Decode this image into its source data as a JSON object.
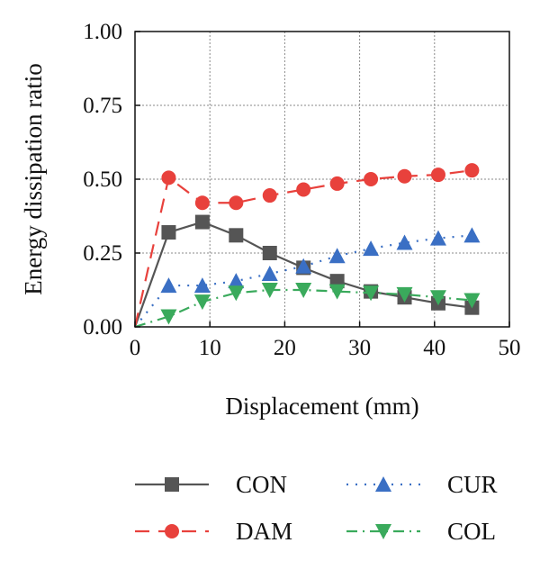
{
  "chart_data": {
    "type": "line",
    "xlabel": "Displacement (mm)",
    "ylabel": "Energy dissipation ratio",
    "xlim": [
      0,
      50
    ],
    "ylim": [
      0,
      1.0
    ],
    "xticks": [
      0,
      10,
      20,
      30,
      40,
      50
    ],
    "yticks": [
      0.0,
      0.25,
      0.5,
      0.75,
      1.0
    ],
    "xtick_labels": [
      "0",
      "10",
      "20",
      "30",
      "40",
      "50"
    ],
    "ytick_labels": [
      "0.00",
      "0.25",
      "0.50",
      "0.75",
      "1.00"
    ],
    "grid": true,
    "legend_position": "bottom",
    "series": [
      {
        "name": "CON",
        "color": "#555555",
        "marker": "square",
        "line_style": "solid",
        "x": [
          0,
          4.5,
          9,
          13.5,
          18,
          22.5,
          27,
          31.5,
          36,
          40.5,
          45
        ],
        "y": [
          0.0,
          0.32,
          0.355,
          0.31,
          0.25,
          0.2,
          0.155,
          0.12,
          0.1,
          0.08,
          0.065
        ]
      },
      {
        "name": "DAM",
        "color": "#e8413c",
        "marker": "circle",
        "line_style": "dashed",
        "x": [
          0,
          4.5,
          9,
          13.5,
          18,
          22.5,
          27,
          31.5,
          36,
          40.5,
          45
        ],
        "y": [
          0.0,
          0.505,
          0.42,
          0.42,
          0.445,
          0.465,
          0.485,
          0.5,
          0.51,
          0.515,
          0.53
        ]
      },
      {
        "name": "CUR",
        "color": "#3a6fc4",
        "marker": "triangle-up",
        "line_style": "dotted",
        "x": [
          0,
          4.5,
          9,
          13.5,
          18,
          22.5,
          27,
          31.5,
          36,
          40.5,
          45
        ],
        "y": [
          0.0,
          0.14,
          0.14,
          0.155,
          0.18,
          0.205,
          0.24,
          0.265,
          0.285,
          0.3,
          0.31
        ]
      },
      {
        "name": "COL",
        "color": "#3aaa5c",
        "marker": "triangle-down",
        "line_style": "dashdot",
        "x": [
          0,
          4.5,
          9,
          13.5,
          18,
          22.5,
          27,
          31.5,
          36,
          40.5,
          45
        ],
        "y": [
          0.0,
          0.035,
          0.085,
          0.115,
          0.125,
          0.125,
          0.12,
          0.115,
          0.11,
          0.1,
          0.09
        ]
      }
    ]
  }
}
